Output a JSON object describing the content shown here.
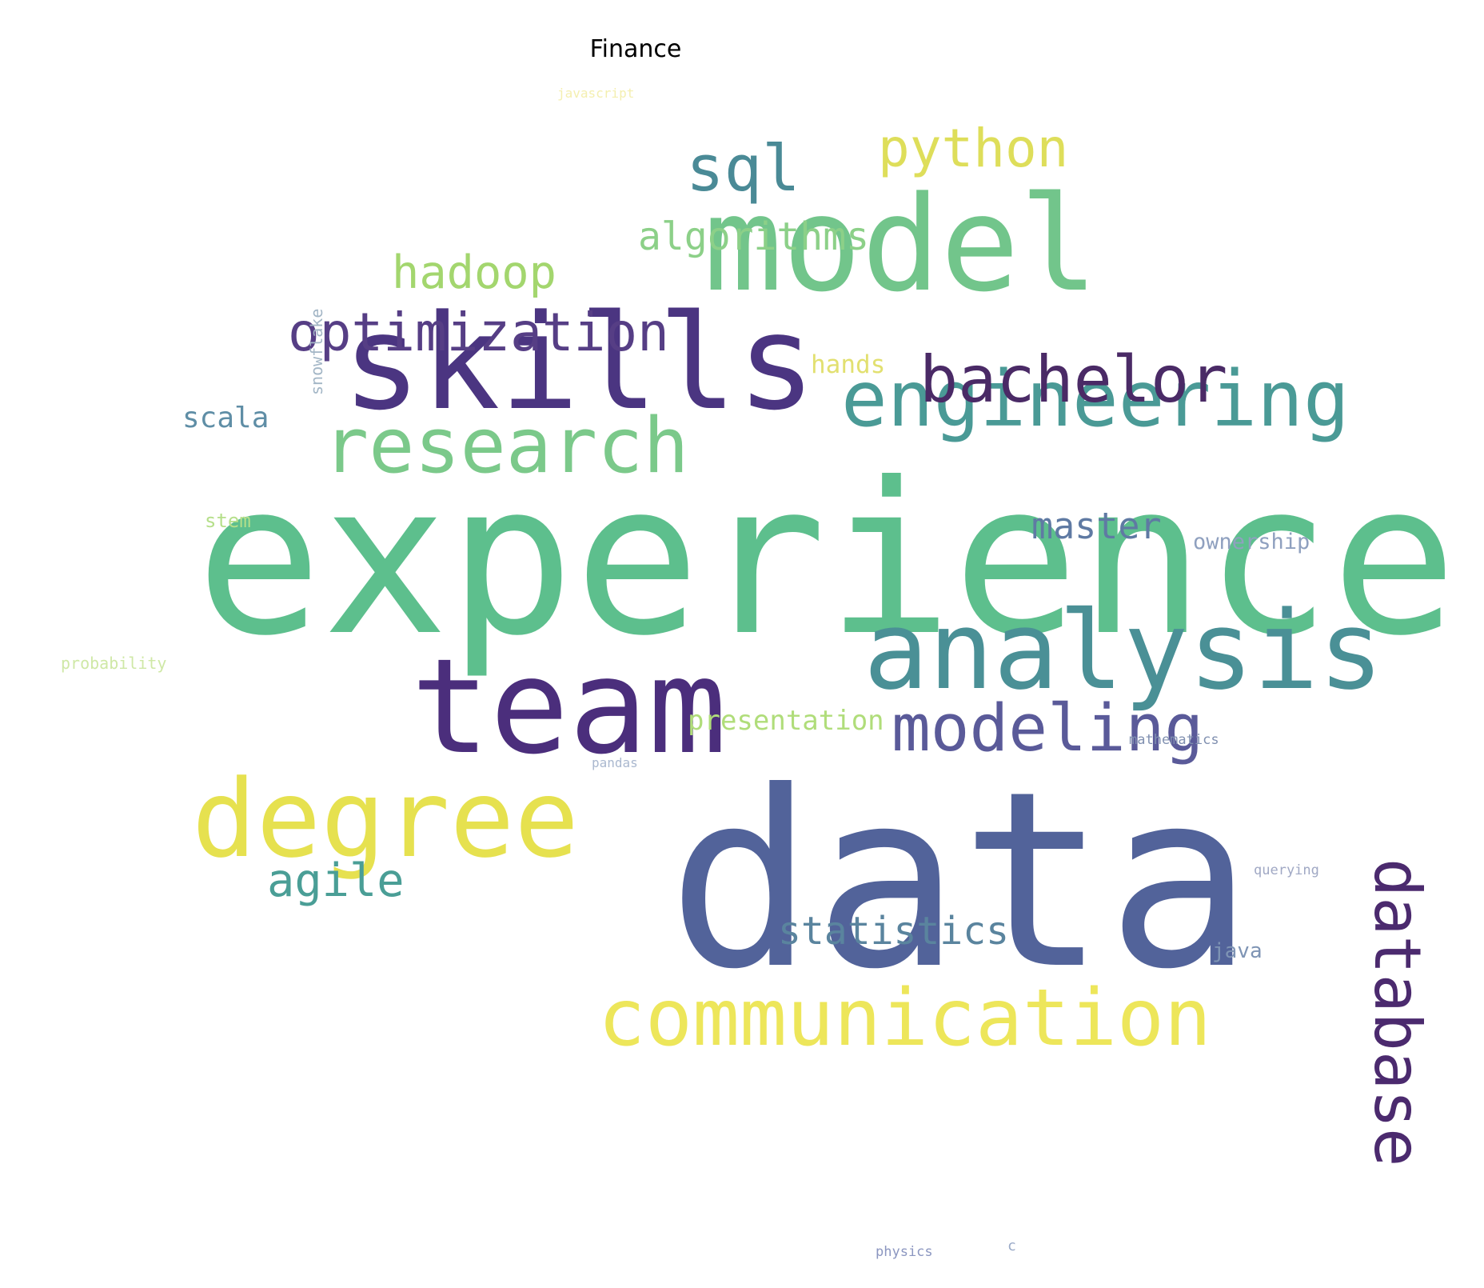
{
  "title": "Finance",
  "words": [
    {
      "text": "experience",
      "color": "#5dbf8d"
    },
    {
      "text": "data",
      "color": "#52639a"
    },
    {
      "text": "skills",
      "color": "#4b3581"
    },
    {
      "text": "model",
      "color": "#72c58b"
    },
    {
      "text": "team",
      "color": "#4b2e7c"
    },
    {
      "text": "analysis",
      "color": "#4a9096"
    },
    {
      "text": "degree",
      "color": "#e6e14f"
    },
    {
      "text": "communication",
      "color": "#ede65a"
    },
    {
      "text": "engineering",
      "color": "#4a9a96"
    },
    {
      "text": "research",
      "color": "#7bc98a"
    },
    {
      "text": "modeling",
      "color": "#5a5a99"
    },
    {
      "text": "database",
      "color": "#4b2a6e"
    },
    {
      "text": "bachelor",
      "color": "#4a2a66"
    },
    {
      "text": "optimization",
      "color": "#563e85"
    },
    {
      "text": "python",
      "color": "#dede5a"
    },
    {
      "text": "sql",
      "color": "#4a8a96"
    },
    {
      "text": "hadoop",
      "color": "#a3d66e"
    },
    {
      "text": "algorithms",
      "color": "#8cd088"
    },
    {
      "text": "agile",
      "color": "#4a9e96"
    },
    {
      "text": "statistics",
      "color": "#5a849e"
    },
    {
      "text": "master",
      "color": "#5f7aa3"
    },
    {
      "text": "scala",
      "color": "#5f8ea6"
    },
    {
      "text": "presentation",
      "color": "#b0dd7a"
    },
    {
      "text": "ownership",
      "color": "#8fa0bf"
    },
    {
      "text": "hands",
      "color": "#e2e070"
    },
    {
      "text": "stem",
      "color": "#b5df8a"
    },
    {
      "text": "snowflake",
      "color": "#a3b6c6"
    },
    {
      "text": "probability",
      "color": "#cfe8a6"
    },
    {
      "text": "javascript",
      "color": "#f4efb0"
    },
    {
      "text": "mathematics",
      "color": "#8090b0"
    },
    {
      "text": "pandas",
      "color": "#aab8cf"
    },
    {
      "text": "querying",
      "color": "#a0a8c4"
    },
    {
      "text": "java",
      "color": "#7e94b4"
    },
    {
      "text": "physics",
      "color": "#8b96c0"
    },
    {
      "text": "c",
      "color": "#9aaac8"
    }
  ]
}
